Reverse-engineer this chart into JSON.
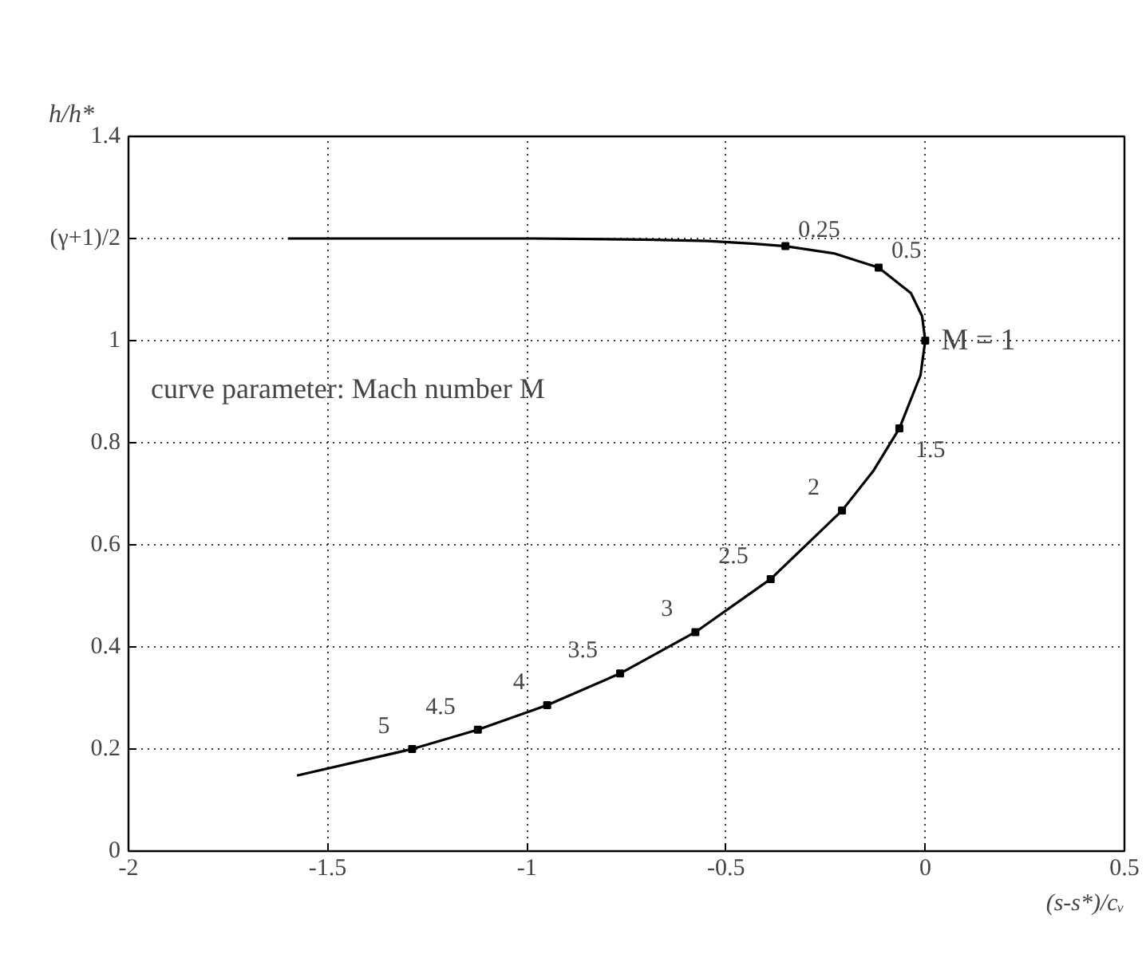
{
  "chart_data": {
    "type": "line",
    "xlabel": "(s-s*)/cᵥ",
    "ylabel": "h/h*",
    "xlim": [
      -2,
      0.5
    ],
    "ylim": [
      0,
      1.4
    ],
    "xticks": [
      -2,
      -1.5,
      -1,
      -0.5,
      0,
      0.5
    ],
    "yticks": [
      0,
      0.2,
      0.4,
      0.6,
      0.8,
      1,
      {
        "value": 1.2,
        "label": "(γ+1)/2"
      },
      1.4
    ],
    "grid": true,
    "series": [
      {
        "color": "#000000",
        "marker": "none",
        "line_style": "solid",
        "x": [
          -1.6,
          -1.257,
          -0.98,
          -0.705,
          -0.545,
          -0.435,
          -0.351,
          -0.23,
          -0.117,
          -0.036,
          -0.008,
          0,
          -0.012,
          -0.065,
          -0.131,
          -0.209,
          -0.388,
          -0.577,
          -0.766,
          -0.949,
          -1.123,
          -1.288,
          -1.577
        ],
        "values": [
          1.2,
          1.2,
          1.2,
          1.198,
          1.195,
          1.19,
          1.185,
          1.171,
          1.143,
          1.093,
          1.048,
          1,
          0.932,
          0.828,
          0.744,
          0.667,
          0.533,
          0.429,
          0.348,
          0.286,
          0.238,
          0.2,
          0.148
        ]
      },
      {
        "type": "scatter",
        "color": "#000000",
        "marker": "square",
        "x": [
          -0.351,
          -0.117,
          0,
          -0.065,
          -0.209,
          -0.388,
          -0.577,
          -0.766,
          -0.949,
          -1.123,
          -1.288
        ],
        "values": [
          1.185,
          1.143,
          1,
          0.828,
          0.667,
          0.533,
          0.429,
          0.348,
          0.286,
          0.238,
          0.2
        ]
      }
    ],
    "annotations": [
      {
        "text": "0.25",
        "x": -0.351,
        "y": 1.185
      },
      {
        "text": "0.5",
        "x": -0.117,
        "y": 1.143
      },
      {
        "text": "M = 1",
        "x": 0,
        "y": 1
      },
      {
        "text": "1.5",
        "x": -0.065,
        "y": 0.828
      },
      {
        "text": "2",
        "x": -0.209,
        "y": 0.667
      },
      {
        "text": "2.5",
        "x": -0.388,
        "y": 0.533
      },
      {
        "text": "3",
        "x": -0.577,
        "y": 0.429
      },
      {
        "text": "3.5",
        "x": -0.766,
        "y": 0.348
      },
      {
        "text": "4",
        "x": -0.949,
        "y": 0.286
      },
      {
        "text": "4.5",
        "x": -1.123,
        "y": 0.238
      },
      {
        "text": "5",
        "x": -1.288,
        "y": 0.2
      },
      "curve parameter: Mach number M"
    ]
  }
}
